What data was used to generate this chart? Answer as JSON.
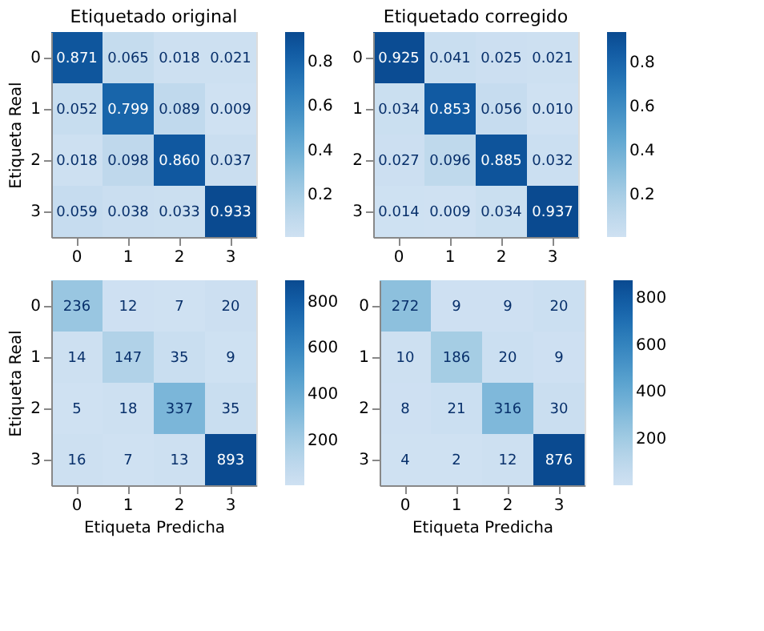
{
  "chart_data": [
    {
      "type": "heatmap",
      "title": "Etiquetado original",
      "ylabel": "Etiqueta Real",
      "categories": [
        "0",
        "1",
        "2",
        "3"
      ],
      "y_categories": [
        "0",
        "1",
        "2",
        "3"
      ],
      "cells": [
        [
          0.871,
          0.065,
          0.018,
          0.021
        ],
        [
          0.052,
          0.799,
          0.089,
          0.009
        ],
        [
          0.018,
          0.098,
          0.86,
          0.037
        ],
        [
          0.059,
          0.038,
          0.033,
          0.933
        ]
      ],
      "cell_labels": [
        [
          "0.871",
          "0.065",
          "0.018",
          "0.021"
        ],
        [
          "0.052",
          "0.799",
          "0.089",
          "0.009"
        ],
        [
          "0.018",
          "0.098",
          "0.860",
          "0.037"
        ],
        [
          "0.059",
          "0.038",
          "0.033",
          "0.933"
        ]
      ],
      "clim": [
        0.009,
        0.933
      ],
      "cticks": [
        0.2,
        0.4,
        0.6,
        0.8
      ]
    },
    {
      "type": "heatmap",
      "title": "Etiquetado corregido",
      "categories": [
        "0",
        "1",
        "2",
        "3"
      ],
      "y_categories": [
        "0",
        "1",
        "2",
        "3"
      ],
      "cells": [
        [
          0.925,
          0.041,
          0.025,
          0.021
        ],
        [
          0.034,
          0.853,
          0.056,
          0.01
        ],
        [
          0.027,
          0.096,
          0.885,
          0.032
        ],
        [
          0.014,
          0.009,
          0.034,
          0.937
        ]
      ],
      "cell_labels": [
        [
          "0.925",
          "0.041",
          "0.025",
          "0.021"
        ],
        [
          "0.034",
          "0.853",
          "0.056",
          "0.010"
        ],
        [
          "0.027",
          "0.096",
          "0.885",
          "0.032"
        ],
        [
          "0.014",
          "0.009",
          "0.034",
          "0.937"
        ]
      ],
      "clim": [
        0.009,
        0.937
      ],
      "cticks": [
        0.2,
        0.4,
        0.6,
        0.8
      ]
    },
    {
      "type": "heatmap",
      "ylabel": "Etiqueta Real",
      "xlabel": "Etiqueta Predicha",
      "categories": [
        "0",
        "1",
        "2",
        "3"
      ],
      "y_categories": [
        "0",
        "1",
        "2",
        "3"
      ],
      "cells": [
        [
          236,
          12,
          7,
          20
        ],
        [
          14,
          147,
          35,
          9
        ],
        [
          5,
          18,
          337,
          35
        ],
        [
          16,
          7,
          13,
          893
        ]
      ],
      "data_labels": true,
      "clim": [
        5,
        893
      ],
      "cticks": [
        200,
        400,
        600,
        800
      ]
    },
    {
      "type": "heatmap",
      "xlabel": "Etiqueta Predicha",
      "categories": [
        "0",
        "1",
        "2",
        "3"
      ],
      "y_categories": [
        "0",
        "1",
        "2",
        "3"
      ],
      "cells": [
        [
          272,
          9,
          9,
          20
        ],
        [
          10,
          186,
          20,
          9
        ],
        [
          8,
          21,
          316,
          30
        ],
        [
          4,
          2,
          12,
          876
        ]
      ],
      "data_labels": true,
      "clim": [
        2,
        876
      ],
      "cticks": [
        200,
        400,
        600,
        800
      ]
    }
  ]
}
